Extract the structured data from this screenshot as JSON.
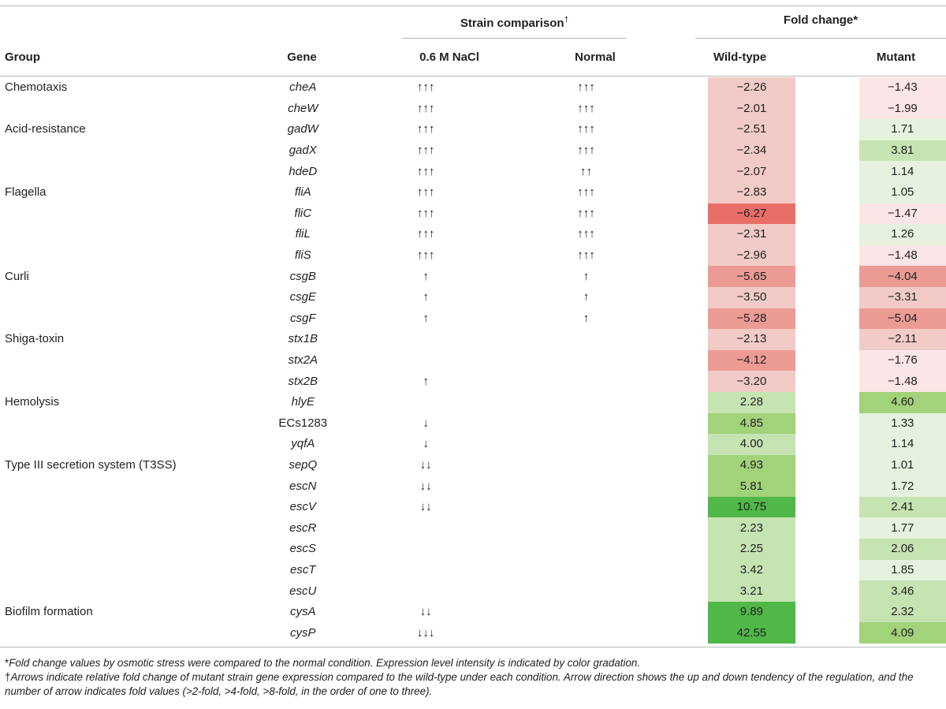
{
  "header": {
    "group": "Group",
    "gene": "Gene",
    "strain_comparison": "Strain comparison",
    "strain_mark": "†",
    "fold_change": "Fold change*",
    "nacl": "0.6 M NaCl",
    "normal": "Normal",
    "wild_type": "Wild-type",
    "mutant": "Mutant"
  },
  "rows": [
    {
      "group": "Chemotaxis",
      "gene": "cheA",
      "nacl": "↑↑↑",
      "normal": "↑↑↑",
      "wt": "−2.26",
      "mut": "−1.43",
      "wt_color": "#f2cbc6",
      "mut_color": "#fae6e6"
    },
    {
      "group": "",
      "gene": "cheW",
      "nacl": "↑↑↑",
      "normal": "↑↑↑",
      "wt": "−2.01",
      "mut": "−1.99",
      "wt_color": "#f2cbc6",
      "mut_color": "#fae6e6"
    },
    {
      "group": "Acid-resistance",
      "gene": "gadW",
      "nacl": "↑↑↑",
      "normal": "↑↑↑",
      "wt": "−2.51",
      "mut": "1.71",
      "wt_color": "#f2cbc6",
      "mut_color": "#e6f2de"
    },
    {
      "group": "",
      "gene": "gadX",
      "nacl": "↑↑↑",
      "normal": "↑↑↑",
      "wt": "−2.34",
      "mut": "3.81",
      "wt_color": "#f2cbc6",
      "mut_color": "#c6e3b2"
    },
    {
      "group": "",
      "gene": "hdeD",
      "nacl": "↑↑↑",
      "normal": "↑↑",
      "wt": "−2.07",
      "mut": "1.14",
      "wt_color": "#f2cbc6",
      "mut_color": "#e6f2de"
    },
    {
      "group": "Flagella",
      "gene": "fliA",
      "nacl": "↑↑↑",
      "normal": "↑↑↑",
      "wt": "−2.83",
      "mut": "1.05",
      "wt_color": "#f2cbc6",
      "mut_color": "#e6f2de"
    },
    {
      "group": "",
      "gene": "fliC",
      "nacl": "↑↑↑",
      "normal": "↑↑↑",
      "wt": "−6.27",
      "mut": "−1.47",
      "wt_color": "#e86f68",
      "mut_color": "#fae6e6"
    },
    {
      "group": "",
      "gene": "fliL",
      "nacl": "↑↑↑",
      "normal": "↑↑↑",
      "wt": "−2.31",
      "mut": "1.26",
      "wt_color": "#f2cbc6",
      "mut_color": "#e6f2de"
    },
    {
      "group": "",
      "gene": "fliS",
      "nacl": "↑↑↑",
      "normal": "↑↑↑",
      "wt": "−2.96",
      "mut": "−1.48",
      "wt_color": "#f2cbc6",
      "mut_color": "#fae6e6"
    },
    {
      "group": "Curli",
      "gene": "csgB",
      "nacl": "↑",
      "normal": "↑",
      "wt": "−5.65",
      "mut": "−4.04",
      "wt_color": "#ec9b94",
      "mut_color": "#ec9b94"
    },
    {
      "group": "",
      "gene": "csgE",
      "nacl": "↑",
      "normal": "↑",
      "wt": "−3.50",
      "mut": "−3.31",
      "wt_color": "#f2cbc6",
      "mut_color": "#f2cbc6"
    },
    {
      "group": "",
      "gene": "csgF",
      "nacl": "↑",
      "normal": "↑",
      "wt": "−5.28",
      "mut": "−5.04",
      "wt_color": "#ec9b94",
      "mut_color": "#ec9b94"
    },
    {
      "group": "Shiga-toxin",
      "gene": "stx1B",
      "nacl": "",
      "normal": "",
      "wt": "−2.13",
      "mut": "−2.11",
      "wt_color": "#f2cbc6",
      "mut_color": "#f2cbc6"
    },
    {
      "group": "",
      "gene": "stx2A",
      "nacl": "",
      "normal": "",
      "wt": "−4.12",
      "mut": "−1.76",
      "wt_color": "#ec9b94",
      "mut_color": "#fae6e6"
    },
    {
      "group": "",
      "gene": "stx2B",
      "nacl": "↑",
      "normal": "",
      "wt": "−3.20",
      "mut": "−1.48",
      "wt_color": "#f2cbc6",
      "mut_color": "#fae6e6"
    },
    {
      "group": "Hemolysis",
      "gene": "hlyE",
      "nacl": "",
      "normal": "",
      "wt": "2.28",
      "mut": "4.60",
      "wt_color": "#c6e3b2",
      "mut_color": "#a2d27a"
    },
    {
      "group": "",
      "gene": "ECs1283",
      "nacl": "↓",
      "normal": "",
      "wt": "4.85",
      "mut": "1.33",
      "wt_color": "#a2d27a",
      "mut_color": "#e6f2de",
      "plain": true
    },
    {
      "group": "",
      "gene": "yqfA",
      "nacl": "↓",
      "normal": "",
      "wt": "4.00",
      "mut": "1.14",
      "wt_color": "#c6e3b2",
      "mut_color": "#e6f2de"
    },
    {
      "group": "Type III secretion system (T3SS)",
      "gene": "sepQ",
      "nacl": "↓↓",
      "normal": "",
      "wt": "4.93",
      "mut": "1.01",
      "wt_color": "#a2d27a",
      "mut_color": "#e6f2de"
    },
    {
      "group": "",
      "gene": "escN",
      "nacl": "↓↓",
      "normal": "",
      "wt": "5.81",
      "mut": "1.72",
      "wt_color": "#a2d27a",
      "mut_color": "#e6f2de"
    },
    {
      "group": "",
      "gene": "escV",
      "nacl": "↓↓",
      "normal": "",
      "wt": "10.75",
      "mut": "2.41",
      "wt_color": "#4fb847",
      "mut_color": "#c6e3b2"
    },
    {
      "group": "",
      "gene": "escR",
      "nacl": "",
      "normal": "",
      "wt": "2.23",
      "mut": "1.77",
      "wt_color": "#c6e3b2",
      "mut_color": "#e6f2de"
    },
    {
      "group": "",
      "gene": "escS",
      "nacl": "",
      "normal": "",
      "wt": "2.25",
      "mut": "2.06",
      "wt_color": "#c6e3b2",
      "mut_color": "#c6e3b2"
    },
    {
      "group": "",
      "gene": "escT",
      "nacl": "",
      "normal": "",
      "wt": "3.42",
      "mut": "1.85",
      "wt_color": "#c6e3b2",
      "mut_color": "#e6f2de"
    },
    {
      "group": "",
      "gene": "escU",
      "nacl": "",
      "normal": "",
      "wt": "3.21",
      "mut": "3.46",
      "wt_color": "#c6e3b2",
      "mut_color": "#c6e3b2"
    },
    {
      "group": "Biofilm formation",
      "gene": "cysA",
      "nacl": "↓↓",
      "normal": "",
      "wt": "9.89",
      "mut": "2.32",
      "wt_color": "#4fb847",
      "mut_color": "#c6e3b2"
    },
    {
      "group": "",
      "gene": "cysP",
      "nacl": "↓↓↓",
      "normal": "",
      "wt": "42.55",
      "mut": "4.09",
      "wt_color": "#4fb847",
      "mut_color": "#a2d27a"
    }
  ],
  "footnotes": {
    "fold_mark": "*",
    "fold_text": "Fold change values by osmotic stress were compared to the normal condition. Expression level intensity is indicated by color gradation.",
    "arrow_mark": "†",
    "arrow_text": "Arrows indicate relative fold change of mutant strain gene expression compared to the wild-type under each condition. Arrow direction shows the up and down tendency of the regulation, and the number of arrow indicates fold values (>2-fold, >4-fold, >8-fold, in the order of one to three)."
  }
}
